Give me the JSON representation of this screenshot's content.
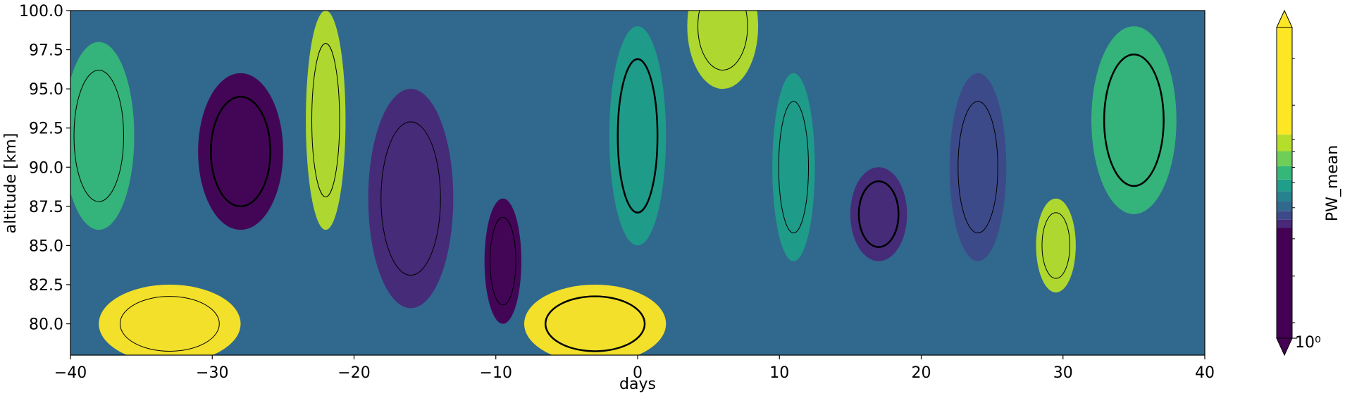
{
  "chart_data": {
    "type": "heatmap",
    "title": "",
    "xlabel": "days",
    "ylabel": "altitude [km]",
    "xlim": [
      -40,
      40
    ],
    "ylim": [
      78,
      100
    ],
    "x_ticks": [
      -40,
      -30,
      -20,
      -10,
      0,
      10,
      20,
      30,
      40
    ],
    "x_tick_labels": [
      "−40",
      "−30",
      "−20",
      "−10",
      "0",
      "10",
      "20",
      "30",
      "40"
    ],
    "y_ticks": [
      80.0,
      82.5,
      85.0,
      87.5,
      90.0,
      92.5,
      95.0,
      97.5,
      100.0
    ],
    "y_tick_labels": [
      "80.0",
      "82.5",
      "85.0",
      "87.5",
      "90.0",
      "92.5",
      "95.0",
      "97.5",
      "100.0"
    ],
    "colorbar": {
      "label": "PW_mean",
      "scale": "log",
      "tick_label": "10⁰",
      "extend": "both",
      "colormap": "viridis",
      "colors": [
        "#440154",
        "#482878",
        "#3e4989",
        "#31688e",
        "#26828e",
        "#1f9e89",
        "#35b779",
        "#6ece58",
        "#b5de2b",
        "#fde725"
      ]
    },
    "contours": {
      "color": "#000000",
      "levels_note": "",
      "bands": []
    },
    "series": []
  }
}
